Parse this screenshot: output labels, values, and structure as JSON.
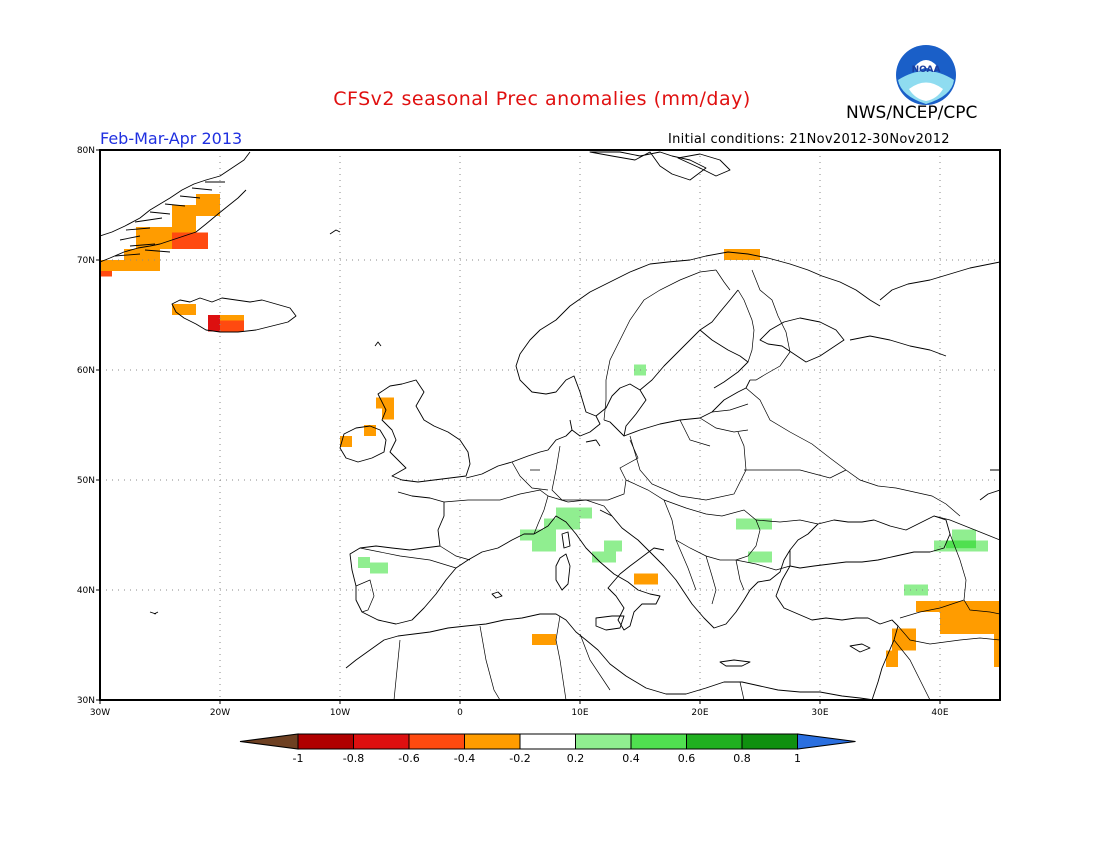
{
  "header": {
    "title": "CFSv2 seasonal Prec anomalies (mm/day)",
    "org": "NWS/NCEP/CPC",
    "period": "Feb-Mar-Apr 2013",
    "initial_conditions": "Initial conditions: 21Nov2012-30Nov2012",
    "logo_text": "NOAA"
  },
  "map": {
    "lon_range": [
      -30,
      45
    ],
    "lat_range": [
      30,
      80
    ],
    "lon_ticks": [
      {
        "lon": -30,
        "label": "30W"
      },
      {
        "lon": -20,
        "label": "20W"
      },
      {
        "lon": -10,
        "label": "10W"
      },
      {
        "lon": 0,
        "label": "0"
      },
      {
        "lon": 10,
        "label": "10E"
      },
      {
        "lon": 20,
        "label": "20E"
      },
      {
        "lon": 30,
        "label": "30E"
      },
      {
        "lon": 40,
        "label": "40E"
      }
    ],
    "lat_ticks": [
      {
        "lat": 30,
        "label": "30N"
      },
      {
        "lat": 40,
        "label": "40N"
      },
      {
        "lat": 50,
        "label": "50N"
      },
      {
        "lat": 60,
        "label": "60N"
      },
      {
        "lat": 70,
        "label": "70N"
      },
      {
        "lat": 80,
        "label": "80N"
      }
    ],
    "grid": "dotted"
  },
  "legend": {
    "bounds": [
      -1,
      -0.8,
      -0.6,
      -0.4,
      -0.2,
      0.2,
      0.4,
      0.6,
      0.8,
      1
    ],
    "labels": [
      "-1",
      "-0.8",
      "-0.6",
      "-0.4",
      "-0.2",
      "0.2",
      "0.4",
      "0.6",
      "0.8",
      "1"
    ],
    "colors": [
      "#6e4022",
      "#b00000",
      "#dd1010",
      "#ff4a10",
      "#ff9c00",
      "#ffffff",
      "#90ee90",
      "#50e050",
      "#20b020",
      "#109010",
      "#2a6fe0"
    ]
  },
  "colors": {
    "orange": "#ff9c00",
    "red_orange": "#ff4a10",
    "red": "#dd1010",
    "dark_red": "#b00000",
    "light_green": "#90ee90",
    "green": "#50e050"
  },
  "anomaly_cells": [
    {
      "lon0": -30,
      "lon1": -29,
      "lat0": 68.5,
      "lat1": 69.5,
      "value": -0.6
    },
    {
      "lon0": -30,
      "lon1": -25,
      "lat0": 69,
      "lat1": 70,
      "value": -0.4
    },
    {
      "lon0": -28,
      "lon1": -25,
      "lat0": 70,
      "lat1": 71,
      "value": -0.4
    },
    {
      "lon0": -27,
      "lon1": -24,
      "lat0": 71,
      "lat1": 73,
      "value": -0.4
    },
    {
      "lon0": -24,
      "lon1": -21,
      "lat0": 71,
      "lat1": 72.5,
      "value": -0.6
    },
    {
      "lon0": -24,
      "lon1": -22,
      "lat0": 72.5,
      "lat1": 75,
      "value": -0.4
    },
    {
      "lon0": -22,
      "lon1": -20,
      "lat0": 74,
      "lat1": 76,
      "value": -0.4
    },
    {
      "lon0": -24,
      "lon1": -22,
      "lat0": 65,
      "lat1": 66,
      "value": -0.4
    },
    {
      "lon0": -21,
      "lon1": -20,
      "lat0": 63.5,
      "lat1": 65,
      "value": -0.8
    },
    {
      "lon0": -20,
      "lon1": -18,
      "lat0": 63.5,
      "lat1": 64.5,
      "value": -0.6
    },
    {
      "lon0": -20,
      "lon1": -18,
      "lat0": 64.5,
      "lat1": 65,
      "value": -0.4
    },
    {
      "lon0": -7,
      "lon1": -5.5,
      "lat0": 56.5,
      "lat1": 57.5,
      "value": -0.4
    },
    {
      "lon0": -6.5,
      "lon1": -5.5,
      "lat0": 55.5,
      "lat1": 56.5,
      "value": -0.4
    },
    {
      "lon0": -8,
      "lon1": -7,
      "lat0": 54,
      "lat1": 55,
      "value": -0.4
    },
    {
      "lon0": -10,
      "lon1": -9,
      "lat0": 53,
      "lat1": 54,
      "value": -0.4
    },
    {
      "lon0": 22,
      "lon1": 25,
      "lat0": 70,
      "lat1": 71,
      "value": -0.4
    },
    {
      "lon0": 14.5,
      "lon1": 16.5,
      "lat0": 40.5,
      "lat1": 41.5,
      "value": -0.4
    },
    {
      "lon0": 6,
      "lon1": 8,
      "lat0": 35,
      "lat1": 36,
      "value": -0.4
    },
    {
      "lon0": 38,
      "lon1": 45,
      "lat0": 38,
      "lat1": 39,
      "value": -0.4
    },
    {
      "lon0": 40,
      "lon1": 45,
      "lat0": 36,
      "lat1": 38,
      "value": -0.4
    },
    {
      "lon0": 44.5,
      "lon1": 45,
      "lat0": 33,
      "lat1": 36,
      "value": -0.4
    },
    {
      "lon0": 36,
      "lon1": 38,
      "lat0": 34.5,
      "lat1": 36.5,
      "value": -0.4
    },
    {
      "lon0": 35.5,
      "lon1": 36.5,
      "lat0": 33,
      "lat1": 34.5,
      "value": -0.4
    },
    {
      "lon0": 14.5,
      "lon1": 15.5,
      "lat0": 59.5,
      "lat1": 60.5,
      "value": 0.2
    },
    {
      "lon0": -8.5,
      "lon1": -7.5,
      "lat0": 42,
      "lat1": 43,
      "value": 0.2
    },
    {
      "lon0": -7.5,
      "lon1": -6,
      "lat0": 41.5,
      "lat1": 42.5,
      "value": 0.2
    },
    {
      "lon0": 5,
      "lon1": 8,
      "lat0": 44.5,
      "lat1": 45.5,
      "value": 0.2
    },
    {
      "lon0": 6,
      "lon1": 8,
      "lat0": 43.5,
      "lat1": 44.5,
      "value": 0.2
    },
    {
      "lon0": 7,
      "lon1": 10,
      "lat0": 45.5,
      "lat1": 46.5,
      "value": 0.2
    },
    {
      "lon0": 8,
      "lon1": 11,
      "lat0": 46.5,
      "lat1": 47.5,
      "value": 0.2
    },
    {
      "lon0": 11,
      "lon1": 13,
      "lat0": 42.5,
      "lat1": 43.5,
      "value": 0.2
    },
    {
      "lon0": 12,
      "lon1": 13.5,
      "lat0": 43.5,
      "lat1": 44.5,
      "value": 0.2
    },
    {
      "lon0": 23,
      "lon1": 26,
      "lat0": 45.5,
      "lat1": 46.5,
      "value": 0.2
    },
    {
      "lon0": 24,
      "lon1": 26,
      "lat0": 42.5,
      "lat1": 43.5,
      "value": 0.2
    },
    {
      "lon0": 37,
      "lon1": 39,
      "lat0": 39.5,
      "lat1": 40.5,
      "value": 0.2
    },
    {
      "lon0": 39.5,
      "lon1": 44,
      "lat0": 43.5,
      "lat1": 44.5,
      "value": 0.2
    },
    {
      "lon0": 41,
      "lon1": 43,
      "lat0": 44.5,
      "lat1": 45.5,
      "value": 0.2
    },
    {
      "lon0": 40.5,
      "lon1": 43,
      "lat0": 43.8,
      "lat1": 44.5,
      "value": 0.4
    }
  ]
}
